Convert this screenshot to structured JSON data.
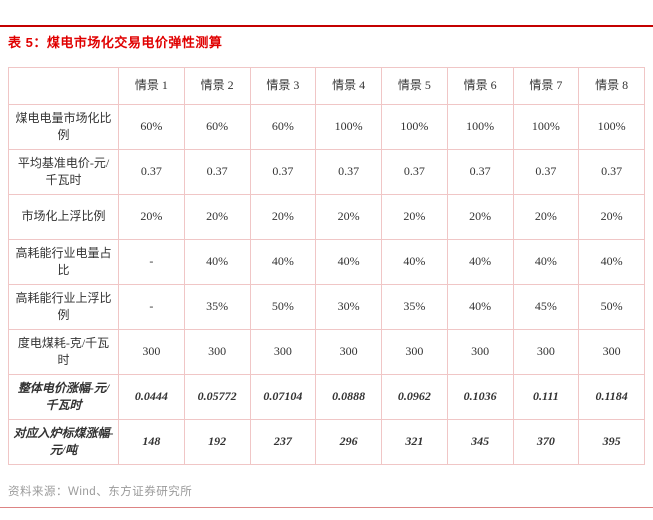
{
  "page": {
    "title": "表 5：煤电市场化交易电价弹性测算",
    "source": "资料来源：Wind、东方证券研究所"
  },
  "colors": {
    "accent_red": "#E00000",
    "top_rule": "#C40000",
    "grid_line": "#F0C6C6",
    "bottom_rule": "#DD8484",
    "source_text": "#9B9B9B"
  },
  "table": {
    "columns": [
      "情景 1",
      "情景 2",
      "情景 3",
      "情景 4",
      "情景 5",
      "情景 6",
      "情景 7",
      "情景 8"
    ],
    "rows": [
      {
        "label": "煤电电量市场化比例",
        "values": [
          "60%",
          "60%",
          "60%",
          "100%",
          "100%",
          "100%",
          "100%",
          "100%"
        ],
        "emphasis": false
      },
      {
        "label": "平均基准电价-元/千瓦时",
        "values": [
          "0.37",
          "0.37",
          "0.37",
          "0.37",
          "0.37",
          "0.37",
          "0.37",
          "0.37"
        ],
        "emphasis": false
      },
      {
        "label": "市场化上浮比例",
        "values": [
          "20%",
          "20%",
          "20%",
          "20%",
          "20%",
          "20%",
          "20%",
          "20%"
        ],
        "emphasis": false
      },
      {
        "label": "高耗能行业电量占比",
        "values": [
          "-",
          "40%",
          "40%",
          "40%",
          "40%",
          "40%",
          "40%",
          "40%"
        ],
        "emphasis": false
      },
      {
        "label": "高耗能行业上浮比例",
        "values": [
          "-",
          "35%",
          "50%",
          "30%",
          "35%",
          "40%",
          "45%",
          "50%"
        ],
        "emphasis": false
      },
      {
        "label": "度电煤耗-克/千瓦时",
        "values": [
          "300",
          "300",
          "300",
          "300",
          "300",
          "300",
          "300",
          "300"
        ],
        "emphasis": false
      },
      {
        "label": "整体电价涨幅-元/千瓦时",
        "values": [
          "0.0444",
          "0.05772",
          "0.07104",
          "0.0888",
          "0.0962",
          "0.1036",
          "0.111",
          "0.1184"
        ],
        "emphasis": true
      },
      {
        "label": "对应入炉标煤涨幅-元/吨",
        "values": [
          "148",
          "192",
          "237",
          "296",
          "321",
          "345",
          "370",
          "395"
        ],
        "emphasis": true
      }
    ]
  }
}
